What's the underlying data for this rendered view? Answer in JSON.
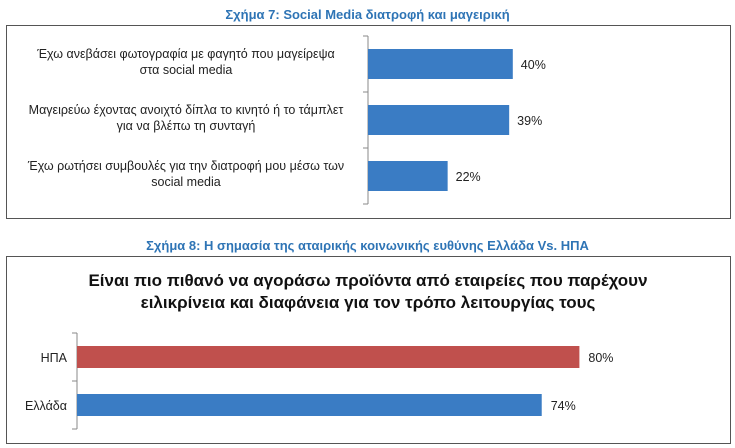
{
  "figure7": {
    "caption": "Σχήμα 7: Social Media διατροφή και μαγειρική"
  },
  "figure8": {
    "caption": "Σχήμα 8: Η σημασία της αταιρικής κοινωνικής ευθύνης Ελλάδα Vs. ΗΠΑ"
  },
  "chart_data": [
    {
      "type": "bar",
      "orientation": "horizontal",
      "title": "",
      "categories": [
        [
          "Έχω ανεβάσει φωτογραφία με φαγητό που μαγείρεψα",
          "στα social media"
        ],
        [
          "Μαγειρεύω έχοντας ανοιχτό δίπλα το κινητό ή το τάμπλετ",
          "για να βλέπω τη συνταγή"
        ],
        [
          "Έχω ρωτήσει συμβουλές για την διατροφή μου μέσω των",
          "social media"
        ]
      ],
      "values": [
        40,
        39,
        22
      ],
      "value_labels": [
        "40%",
        "39%",
        "22%"
      ],
      "xlim": [
        0,
        100
      ],
      "grid": false,
      "colors": [
        "#3a7cc4"
      ]
    },
    {
      "type": "bar",
      "orientation": "horizontal",
      "title": [
        "Είναι πιο πιθανό να αγοράσω προϊόντα από εταιρείες που παρέχουν",
        "ειλικρίνεια και διαφάνεια για τον τρόπο λειτουργίας τους"
      ],
      "categories": [
        "ΗΠΑ",
        "Ελλάδα"
      ],
      "values": [
        80,
        74
      ],
      "value_labels": [
        "80%",
        "74%"
      ],
      "xlim": [
        0,
        100
      ],
      "grid": false,
      "colors": [
        "#c0504d",
        "#3a7cc4"
      ]
    }
  ]
}
